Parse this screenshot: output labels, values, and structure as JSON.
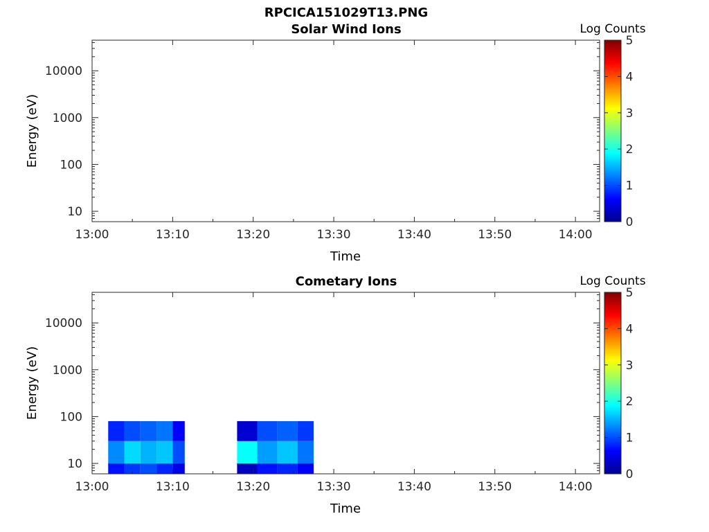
{
  "figure_title": "RPCICA151029T13.PNG",
  "chart_data": [
    {
      "type": "heatmap",
      "title": "Solar Wind Ions",
      "xlabel": "Time",
      "ylabel": "Energy (eV)",
      "xlim": [
        "13:00",
        "14:03"
      ],
      "ylim": [
        6,
        45000
      ],
      "y_scale": "log",
      "x_tick_labels": [
        "13:00",
        "13:10",
        "13:20",
        "13:30",
        "13:40",
        "13:50",
        "14:00"
      ],
      "y_tick_labels": [
        "10",
        "100",
        "1000",
        "10000"
      ],
      "colorbar": {
        "label": "Log Counts",
        "range": [
          0,
          5
        ],
        "tick_labels": [
          "0",
          "1",
          "2",
          "3",
          "4",
          "5"
        ],
        "colormap": "jet"
      },
      "cells": []
    },
    {
      "type": "heatmap",
      "title": "Cometary Ions",
      "xlabel": "Time",
      "ylabel": "Energy (eV)",
      "xlim": [
        "13:00",
        "14:03"
      ],
      "ylim": [
        6,
        45000
      ],
      "y_scale": "log",
      "x_tick_labels": [
        "13:00",
        "13:10",
        "13:20",
        "13:30",
        "13:40",
        "13:50",
        "14:00"
      ],
      "y_tick_labels": [
        "10",
        "100",
        "1000",
        "10000"
      ],
      "colorbar": {
        "label": "Log Counts",
        "range": [
          0,
          5
        ],
        "tick_labels": [
          "0",
          "1",
          "2",
          "3",
          "4",
          "5"
        ],
        "colormap": "jet"
      },
      "cells": [
        {
          "t0": "13:02",
          "t1": "13:04",
          "e0": 6,
          "e1": 10,
          "log_counts": 0.7
        },
        {
          "t0": "13:02",
          "t1": "13:04",
          "e0": 10,
          "e1": 30,
          "log_counts": 1.3
        },
        {
          "t0": "13:02",
          "t1": "13:04",
          "e0": 30,
          "e1": 80,
          "log_counts": 0.8
        },
        {
          "t0": "13:04",
          "t1": "13:06",
          "e0": 6,
          "e1": 10,
          "log_counts": 0.9
        },
        {
          "t0": "13:04",
          "t1": "13:06",
          "e0": 10,
          "e1": 30,
          "log_counts": 1.7
        },
        {
          "t0": "13:04",
          "t1": "13:06",
          "e0": 30,
          "e1": 80,
          "log_counts": 1.0
        },
        {
          "t0": "13:06",
          "t1": "13:08",
          "e0": 6,
          "e1": 10,
          "log_counts": 1.0
        },
        {
          "t0": "13:06",
          "t1": "13:08",
          "e0": 10,
          "e1": 30,
          "log_counts": 1.5
        },
        {
          "t0": "13:06",
          "t1": "13:08",
          "e0": 30,
          "e1": 80,
          "log_counts": 1.1
        },
        {
          "t0": "13:08",
          "t1": "13:10",
          "e0": 6,
          "e1": 10,
          "log_counts": 0.8
        },
        {
          "t0": "13:08",
          "t1": "13:10",
          "e0": 10,
          "e1": 30,
          "log_counts": 1.6
        },
        {
          "t0": "13:08",
          "t1": "13:10",
          "e0": 30,
          "e1": 80,
          "log_counts": 1.2
        },
        {
          "t0": "13:10",
          "t1": "13:11.5",
          "e0": 6,
          "e1": 10,
          "log_counts": 0.5
        },
        {
          "t0": "13:10",
          "t1": "13:11.5",
          "e0": 10,
          "e1": 30,
          "log_counts": 1.0
        },
        {
          "t0": "13:10",
          "t1": "13:11.5",
          "e0": 30,
          "e1": 80,
          "log_counts": 0.6
        },
        {
          "t0": "13:18",
          "t1": "13:20.5",
          "e0": 6,
          "e1": 10,
          "log_counts": 0.3
        },
        {
          "t0": "13:18",
          "t1": "13:20.5",
          "e0": 10,
          "e1": 30,
          "log_counts": 1.9
        },
        {
          "t0": "13:18",
          "t1": "13:20.5",
          "e0": 30,
          "e1": 80,
          "log_counts": 0.4
        },
        {
          "t0": "13:20.5",
          "t1": "13:23",
          "e0": 6,
          "e1": 10,
          "log_counts": 0.7
        },
        {
          "t0": "13:20.5",
          "t1": "13:23",
          "e0": 10,
          "e1": 30,
          "log_counts": 1.4
        },
        {
          "t0": "13:20.5",
          "t1": "13:23",
          "e0": 30,
          "e1": 80,
          "log_counts": 1.0
        },
        {
          "t0": "13:23",
          "t1": "13:25.5",
          "e0": 6,
          "e1": 10,
          "log_counts": 0.8
        },
        {
          "t0": "13:23",
          "t1": "13:25.5",
          "e0": 10,
          "e1": 30,
          "log_counts": 1.6
        },
        {
          "t0": "13:23",
          "t1": "13:25.5",
          "e0": 30,
          "e1": 80,
          "log_counts": 1.1
        },
        {
          "t0": "13:25.5",
          "t1": "13:27.5",
          "e0": 6,
          "e1": 10,
          "log_counts": 0.6
        },
        {
          "t0": "13:25.5",
          "t1": "13:27.5",
          "e0": 10,
          "e1": 30,
          "log_counts": 1.2
        },
        {
          "t0": "13:25.5",
          "t1": "13:27.5",
          "e0": 30,
          "e1": 80,
          "log_counts": 0.9
        }
      ]
    }
  ]
}
